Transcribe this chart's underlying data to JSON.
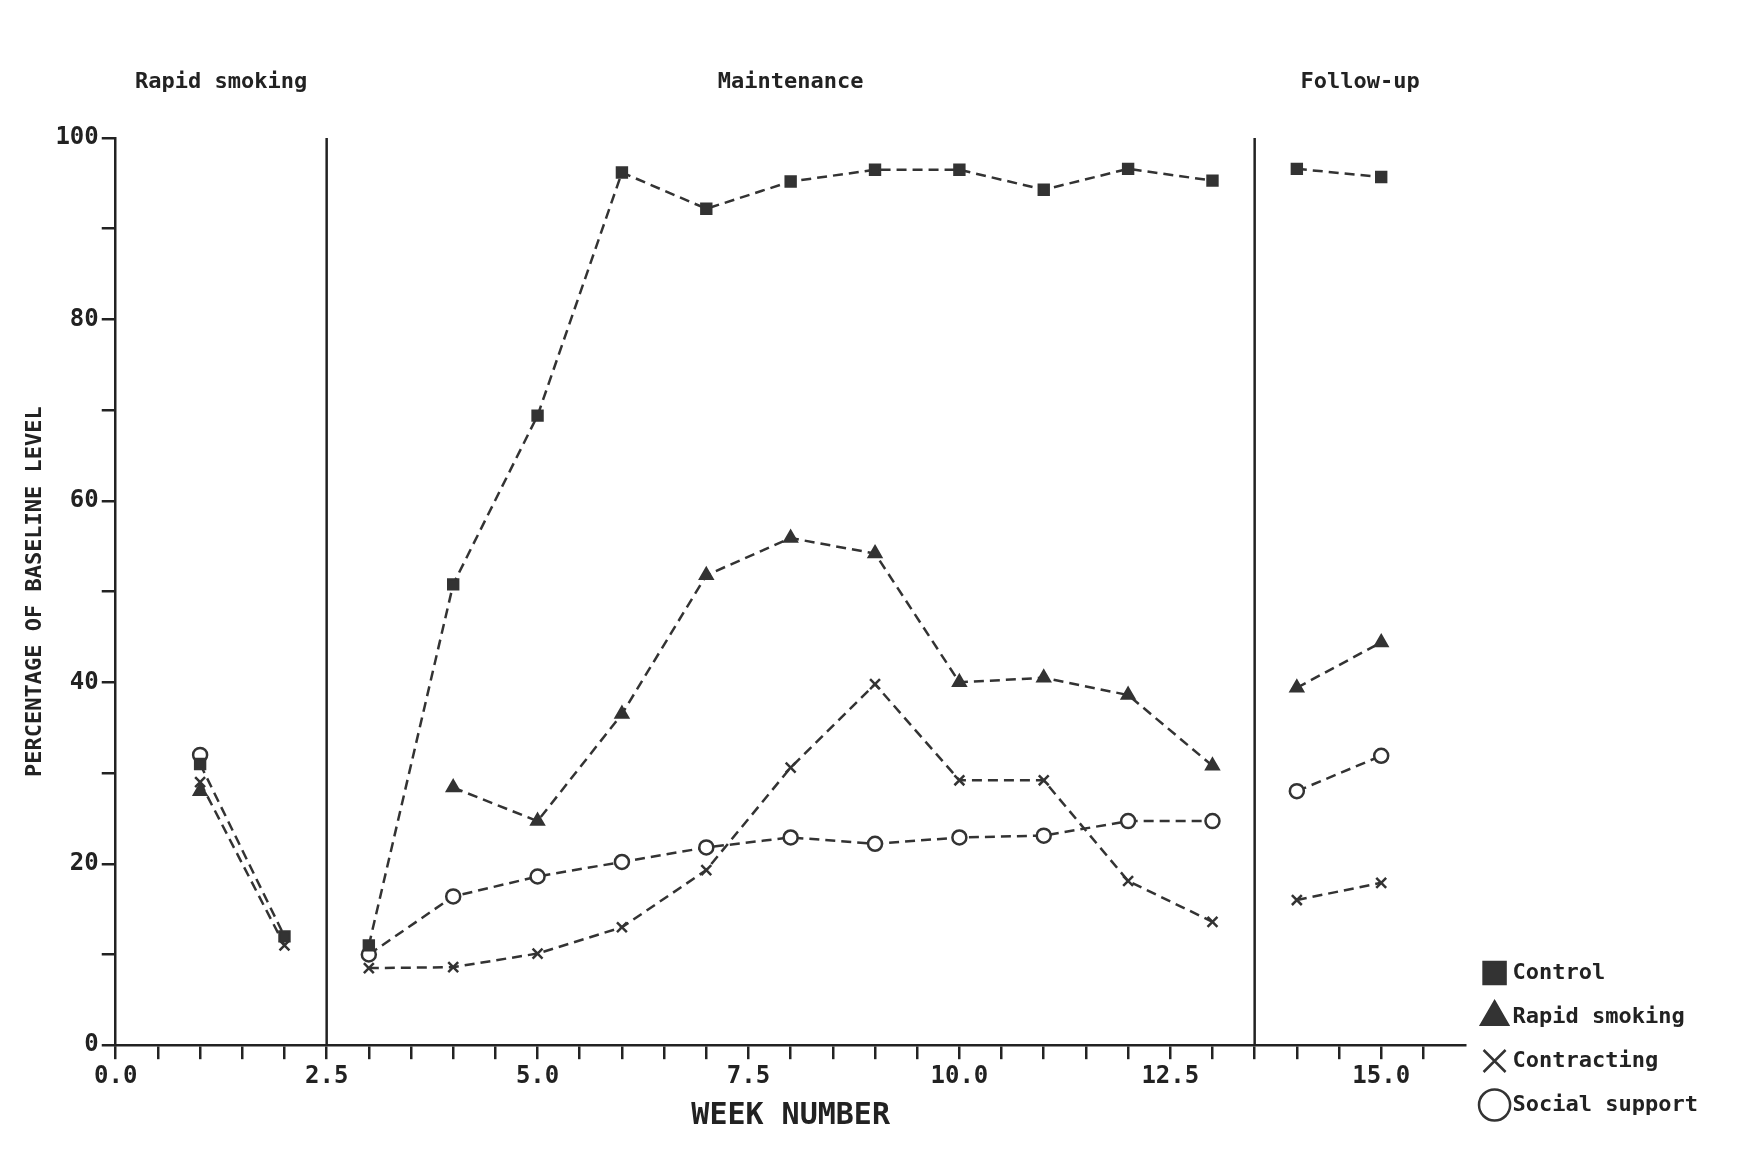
{
  "chart_data": {
    "type": "line",
    "xlabel": "WEEK NUMBER",
    "ylabel": "PERCENTAGE OF BASELINE LEVEL",
    "x": [
      1,
      2,
      2.5,
      3,
      4,
      5,
      6,
      7,
      8,
      9,
      10,
      11,
      12,
      13,
      13.5,
      14,
      15
    ],
    "series": [
      {
        "name": "Control",
        "color": "#333333",
        "marker": "square",
        "values": [
          31,
          12,
          null,
          11,
          50.8,
          69.4,
          96.2,
          92.2,
          95.2,
          96.5,
          96.5,
          94.3,
          96.6,
          95.3,
          null,
          96.6,
          95.7
        ]
      },
      {
        "name": "Rapid smoking",
        "color": "#333333",
        "marker": "triangle",
        "values": [
          28,
          null,
          null,
          null,
          28.4,
          24.7,
          36.5,
          51.8,
          55.9,
          54.2,
          40,
          40.5,
          38.6,
          30.8,
          null,
          39.4,
          44.4
        ]
      },
      {
        "name": "Contracting",
        "color": "#333333",
        "marker": "cross",
        "values": [
          29,
          11,
          null,
          8.5,
          8.6,
          10.1,
          13,
          19.3,
          30.6,
          39.8,
          29.2,
          29.2,
          18.1,
          13.6,
          null,
          16,
          17.9
        ]
      },
      {
        "name": "Social support",
        "color": "#333333",
        "marker": "circle",
        "values": [
          32,
          null,
          null,
          10,
          16.4,
          18.6,
          20.2,
          21.8,
          22.9,
          22.2,
          22.9,
          23.1,
          24.7,
          24.7,
          null,
          28,
          31.9
        ]
      }
    ],
    "xlim": [
      0,
      16
    ],
    "xticks": [
      {
        "value": 0,
        "label": "0.0"
      },
      {
        "value": 0.5,
        "label": null
      },
      {
        "value": 1,
        "label": null
      },
      {
        "value": 1.5,
        "label": null
      },
      {
        "value": 2,
        "label": null
      },
      {
        "value": 2.5,
        "label": "2.5"
      },
      {
        "value": 3,
        "label": null
      },
      {
        "value": 3.5,
        "label": null
      },
      {
        "value": 4,
        "label": null
      },
      {
        "value": 4.5,
        "label": null
      },
      {
        "value": 5,
        "label": "5.0"
      },
      {
        "value": 5.5,
        "label": null
      },
      {
        "value": 6,
        "label": null
      },
      {
        "value": 6.5,
        "label": null
      },
      {
        "value": 7,
        "label": null
      },
      {
        "value": 7.5,
        "label": "7.5"
      },
      {
        "value": 8,
        "label": null
      },
      {
        "value": 8.5,
        "label": null
      },
      {
        "value": 9,
        "label": null
      },
      {
        "value": 9.5,
        "label": null
      },
      {
        "value": 10,
        "label": "10.0"
      },
      {
        "value": 10.5,
        "label": null
      },
      {
        "value": 11,
        "label": null
      },
      {
        "value": 11.5,
        "label": null
      },
      {
        "value": 12,
        "label": null
      },
      {
        "value": 12.5,
        "label": "12.5"
      },
      {
        "value": 13,
        "label": null
      },
      {
        "value": 13.5,
        "label": null
      },
      {
        "value": 14,
        "label": null
      },
      {
        "value": 14.5,
        "label": null
      },
      {
        "value": 15,
        "label": "15.0"
      },
      {
        "value": 15.5,
        "label": null
      }
    ],
    "ylim": [
      0,
      100
    ],
    "yticks": [
      0,
      {
        "value": 10,
        "label": null
      },
      20,
      {
        "value": 30,
        "label": null
      },
      40,
      {
        "value": 50,
        "label": null
      },
      60,
      {
        "value": 70,
        "label": null
      },
      80,
      {
        "value": 90,
        "label": null
      },
      100
    ],
    "ref_lines": [
      {
        "axis": "x",
        "value": 2.5
      },
      {
        "axis": "x",
        "value": 13.5
      }
    ],
    "annotations": [
      "Rapid smoking",
      "Maintenance",
      "Follow-up"
    ],
    "grid": false,
    "legend": "right",
    "line_style": "dashed"
  }
}
